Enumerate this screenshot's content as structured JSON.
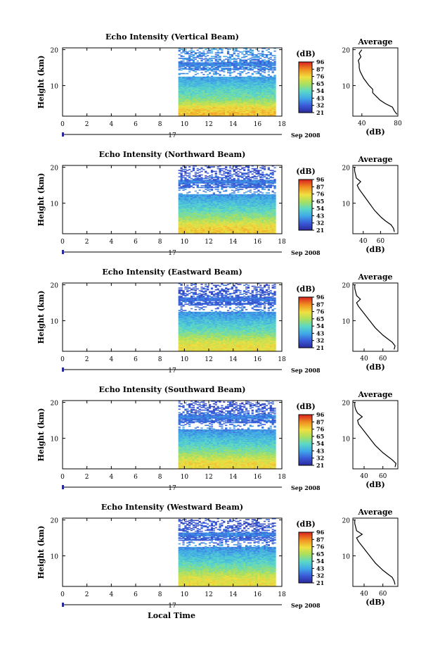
{
  "time_axis": {
    "label": "Local Time",
    "ticks": [
      "0",
      "2",
      "4",
      "6",
      "8",
      "10",
      "12",
      "14",
      "16",
      "18"
    ],
    "date_day": "17",
    "date_month": "Sep 2008"
  },
  "colorbar": {
    "unit": "(dB)",
    "labels": [
      "96",
      "87",
      "76",
      "65",
      "54",
      "43",
      "32",
      "21"
    ]
  },
  "profile": {
    "title": "Average",
    "xlabel": "(dB)"
  },
  "height_axis": {
    "label": "Height (km)",
    "ticks": [
      "20",
      "10"
    ]
  },
  "chart_data": [
    {
      "type": "heatmap",
      "title": "Echo Intensity (Vertical Beam)",
      "xlabel": "Local Time",
      "ylabel": "Height (km)",
      "xlim": [
        0,
        18
      ],
      "ylim": [
        1.5,
        20.5
      ],
      "data_time_range": [
        9.5,
        17.5
      ],
      "color_range_db": [
        21,
        96
      ],
      "profile": {
        "xlim": [
          30,
          80
        ],
        "xticks": [
          "40",
          "80"
        ],
        "xtick_values": [
          40,
          80
        ],
        "heights": [
          2,
          3,
          4,
          5,
          6,
          7,
          8,
          9,
          10,
          11,
          12,
          13,
          14,
          15,
          16,
          17,
          18,
          19,
          20
        ],
        "values": [
          79,
          76,
          74,
          66,
          60,
          56,
          52,
          52,
          48,
          45,
          42,
          40,
          38,
          37,
          37,
          36,
          39,
          37,
          40
        ]
      }
    },
    {
      "type": "heatmap",
      "title": "Echo Intensity (Northward Beam)",
      "xlabel": "Local Time",
      "ylabel": "Height (km)",
      "xlim": [
        0,
        18
      ],
      "ylim": [
        1.5,
        20.5
      ],
      "data_time_range": [
        9.5,
        17.5
      ],
      "color_range_db": [
        21,
        96
      ],
      "profile": {
        "xlim": [
          28,
          80
        ],
        "xticks": [
          "40",
          "60"
        ],
        "xtick_values": [
          40,
          60
        ],
        "heights": [
          2,
          3,
          4,
          5,
          6,
          7,
          8,
          9,
          10,
          11,
          12,
          13,
          14,
          15,
          16,
          17,
          18,
          19,
          20
        ],
        "values": [
          76,
          75,
          72,
          66,
          61,
          57,
          53,
          50,
          47,
          44,
          41,
          38,
          35,
          33,
          37,
          32,
          31,
          30,
          30
        ]
      }
    },
    {
      "type": "heatmap",
      "title": "Echo Intensity (Eastward Beam)",
      "xlabel": "Local Time",
      "ylabel": "Height (km)",
      "xlim": [
        0,
        18
      ],
      "ylim": [
        1.5,
        20.5
      ],
      "data_time_range": [
        9.5,
        17.5
      ],
      "color_range_db": [
        21,
        96
      ],
      "profile": {
        "xlim": [
          28,
          76
        ],
        "xticks": [
          "40",
          "60"
        ],
        "xtick_values": [
          40,
          60
        ],
        "heights": [
          2,
          3,
          4,
          5,
          6,
          7,
          8,
          9,
          10,
          11,
          12,
          13,
          14,
          15,
          16,
          17,
          18,
          19,
          20
        ],
        "values": [
          72,
          73,
          70,
          65,
          60,
          56,
          52,
          49,
          46,
          43,
          40,
          37,
          34,
          32,
          36,
          32,
          31,
          30,
          30
        ]
      }
    },
    {
      "type": "heatmap",
      "title": "Echo Intensity (Southward Beam)",
      "xlabel": "Local Time",
      "ylabel": "Height (km)",
      "xlim": [
        0,
        18
      ],
      "ylim": [
        1.5,
        20.5
      ],
      "data_time_range": [
        9.5,
        17.5
      ],
      "color_range_db": [
        21,
        96
      ],
      "profile": {
        "xlim": [
          28,
          76
        ],
        "xticks": [
          "40",
          "60"
        ],
        "xtick_values": [
          40,
          60
        ],
        "heights": [
          2,
          3,
          4,
          5,
          6,
          7,
          8,
          9,
          10,
          11,
          12,
          13,
          14,
          15,
          16,
          17,
          18,
          19,
          20
        ],
        "values": [
          73,
          74,
          70,
          65,
          60,
          56,
          52,
          49,
          46,
          43,
          40,
          37,
          34,
          33,
          38,
          33,
          31,
          30,
          30
        ]
      }
    },
    {
      "type": "heatmap",
      "title": "Echo Intensity (Westward Beam)",
      "xlabel": "Local Time",
      "ylabel": "Height (km)",
      "xlim": [
        0,
        18
      ],
      "ylim": [
        1.5,
        20.5
      ],
      "data_time_range": [
        9.5,
        17.5
      ],
      "color_range_db": [
        21,
        96
      ],
      "profile": {
        "xlim": [
          28,
          76
        ],
        "xticks": [
          "40",
          "60"
        ],
        "xtick_values": [
          40,
          60
        ],
        "heights": [
          2,
          3,
          4,
          5,
          6,
          7,
          8,
          9,
          10,
          11,
          12,
          13,
          14,
          15,
          16,
          17,
          18,
          19,
          20
        ],
        "values": [
          73,
          72,
          70,
          65,
          60,
          56,
          52,
          49,
          46,
          43,
          40,
          37,
          34,
          32,
          38,
          32,
          31,
          30,
          30
        ]
      }
    }
  ]
}
